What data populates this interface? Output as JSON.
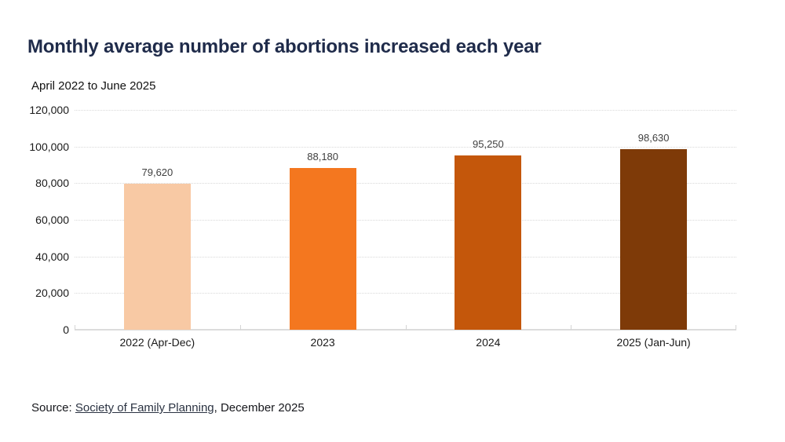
{
  "header": {
    "title": "Monthly average number of abortions increased each year",
    "subtitle": "April 2022 to June 2025"
  },
  "chart_data": {
    "type": "bar",
    "title": "Monthly average number of abortions increased each year",
    "subtitle": "April 2022 to June 2025",
    "categories": [
      "2022 (Apr-Dec)",
      "2023",
      "2024",
      "2025 (Jan-Jun)"
    ],
    "values": [
      79620,
      88180,
      95250,
      98630
    ],
    "value_labels": [
      "79,620",
      "88,180",
      "95,250",
      "98,630"
    ],
    "bar_colors": [
      "#f8c9a4",
      "#f4771f",
      "#c4570b",
      "#7e3a08"
    ],
    "xlabel": "",
    "ylabel": "",
    "ylim": [
      0,
      120000
    ],
    "ytick_interval": 20000,
    "ytick_labels": [
      "0",
      "20,000",
      "40,000",
      "60,000",
      "80,000",
      "100,000",
      "120,000"
    ],
    "grid": "horizontal-dotted",
    "legend": "none"
  },
  "footer": {
    "source_prefix": "Source: ",
    "source_link": "Society of Family Planning",
    "source_suffix": ", December 2025"
  },
  "colors": {
    "title": "#1f2b4a",
    "grid": "#d9d9d9",
    "axis_line": "#dcdcdc",
    "tick_text": "#1a1a1a",
    "value_label_text": "#404040",
    "background": "#ffffff"
  }
}
